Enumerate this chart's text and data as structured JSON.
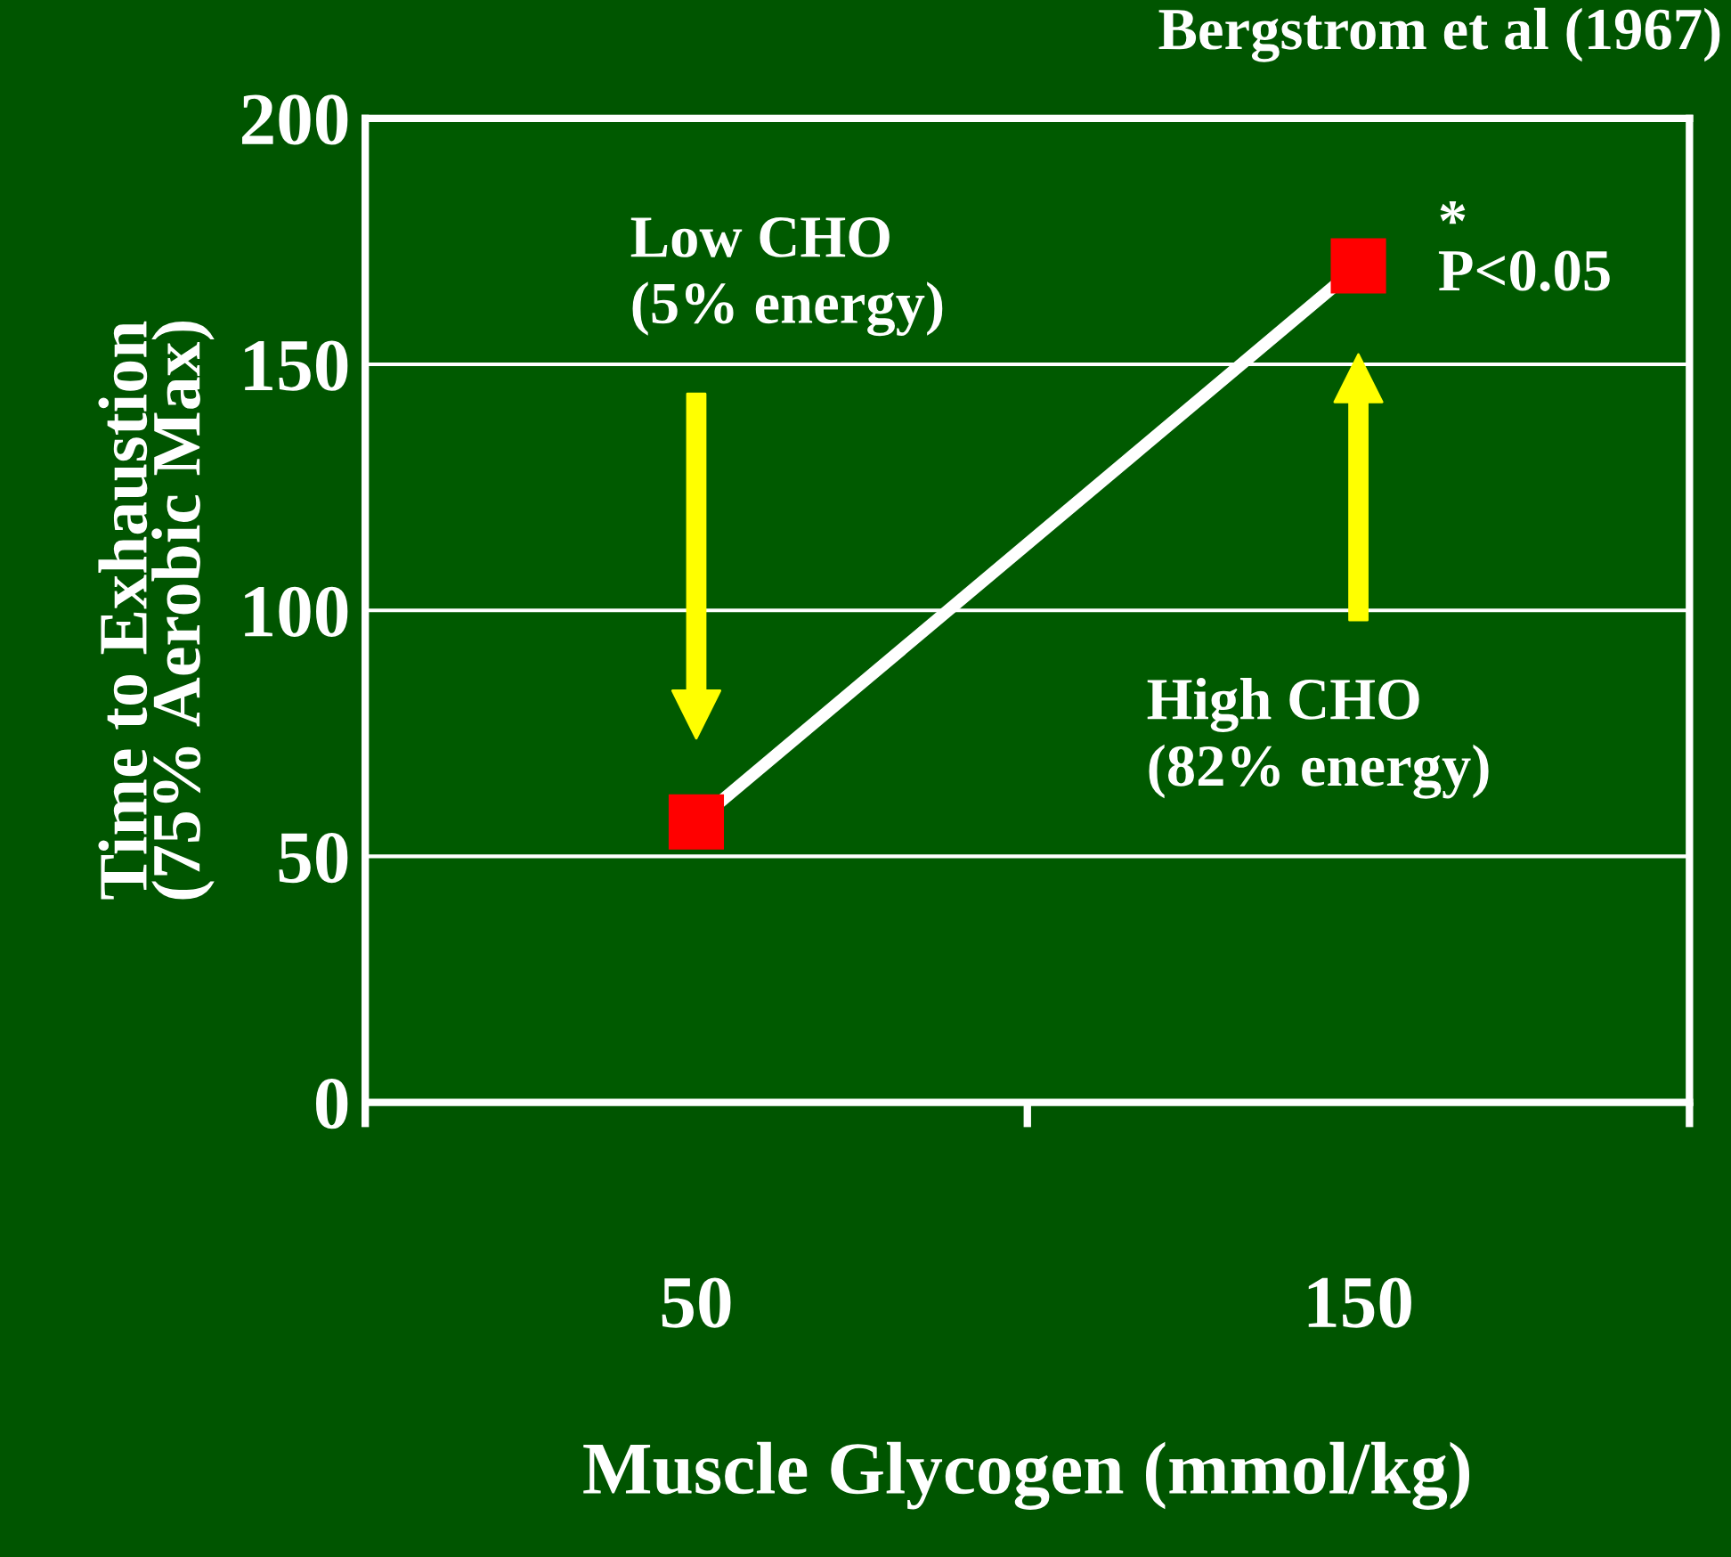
{
  "chart_data": {
    "type": "line",
    "xlabel": "Muscle Glycogen (mmol/kg)",
    "ylabel": "Time to Exhaustion\n(75% Aerobic Max)",
    "categories": [
      "50",
      "150"
    ],
    "series": [
      {
        "color": "#ffffff",
        "colors": [
          "#ff0000",
          "#ff0000"
        ],
        "values": [
          57,
          170
        ]
      }
    ],
    "marker": "square",
    "line_style": "solid",
    "ylim": [
      0,
      200
    ],
    "yticks": [
      0,
      50,
      100,
      150,
      200
    ],
    "grid": "y",
    "legend": false,
    "annotations": [
      "Bergstrom et al (1967)",
      "Low CHO\n(5% energy)",
      "High CHO\n(82% energy)",
      {
        "text": "*\nP<0.05",
        "x": "150",
        "y": 170
      }
    ]
  }
}
